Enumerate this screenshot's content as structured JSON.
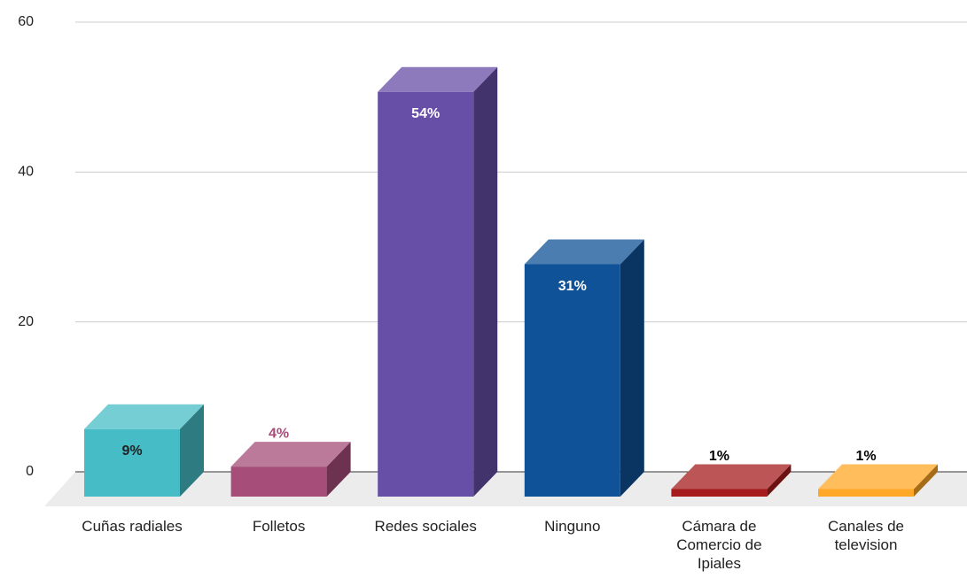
{
  "chart_data": {
    "type": "bar3d",
    "categories": [
      "Cuñas radiales",
      "Folletos",
      "Redes sociales",
      "Ninguno",
      "Cámara de Comercio de Ipiales",
      "Canales de television"
    ],
    "values": [
      9,
      4,
      54,
      31,
      1,
      1
    ],
    "value_labels": [
      "9%",
      "4%",
      "54%",
      "31%",
      "1%",
      "1%"
    ],
    "colors": [
      "#46bdc6",
      "#a64d79",
      "#674ea7",
      "#0f5297",
      "#a61c1c",
      "#ffa726"
    ],
    "label_colors": [
      "#222222",
      "#a64d79",
      "#ffffff",
      "#ffffff",
      "#000000",
      "#000000"
    ],
    "ylim": [
      0,
      60
    ],
    "yticks": [
      0,
      20,
      40,
      60
    ],
    "grid": true
  }
}
